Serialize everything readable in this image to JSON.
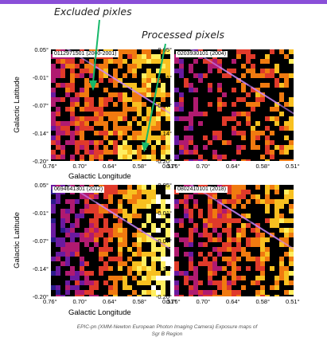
{
  "annotations": {
    "excluded": "Excluded pixles",
    "processed": "Processed pixels"
  },
  "axes": {
    "ylabel": "Galactic Latitude",
    "xlabel": "Galactic Longitude",
    "yticks": [
      "0.05°",
      "-0.01°",
      "-0.07°",
      "-0.14°",
      "-0.20°"
    ],
    "xticks": [
      "0.76°",
      "0.70°",
      "0.64°",
      "0.58°",
      "0.51°"
    ]
  },
  "panels": [
    {
      "id": "0112971501 (2000-2001)"
    },
    {
      "id": "0203930101 (2004)"
    },
    {
      "id": "0694641301 (2012)"
    },
    {
      "id": "0802410101 (2018)"
    }
  ],
  "caption": "EPIC-pn (XMM-Newton European Photon Imaging Camera) Exposure maps of Sgr B Region",
  "colors": {
    "accent_bar": "#8a4fd8",
    "arrow": "#16b86a",
    "excluded": "#000000",
    "colormap": [
      "#2a1a8a",
      "#6a1aa0",
      "#b01a70",
      "#e03a2a",
      "#f07a10",
      "#f8c020",
      "#ffef60",
      "#ffffff"
    ]
  }
}
